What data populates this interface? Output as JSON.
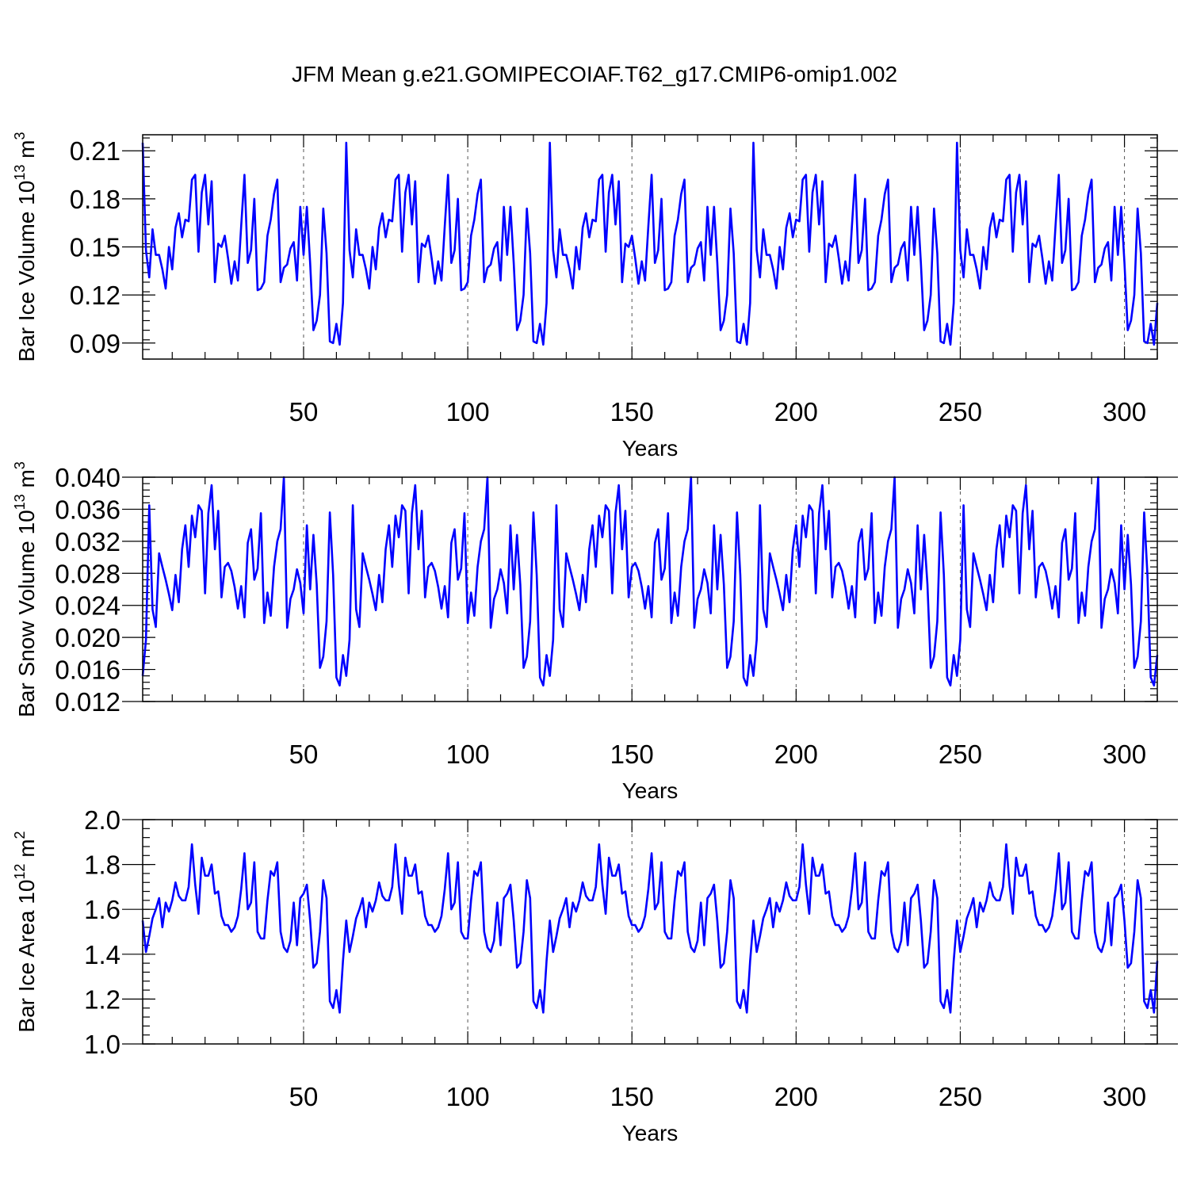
{
  "title": "JFM Mean g.e21.GOMIPECOIAF.T62_g17.CMIP6-omip1.002",
  "chart_data": [
    {
      "type": "line",
      "ylabel": "Bar Ice Volume 10",
      "ylabel_sup": "13",
      "ylabel_unit": " m",
      "ylabel_unit_sup": "3",
      "xlabel": "Years",
      "xlim": [
        1,
        310
      ],
      "ylim": [
        0.08,
        0.22
      ],
      "yticks": [
        "0.09",
        "0.12",
        "0.15",
        "0.18",
        "0.21"
      ],
      "ytick_values": [
        0.09,
        0.12,
        0.15,
        0.18,
        0.21
      ],
      "xticks": [
        "50",
        "100",
        "150",
        "200",
        "250",
        "300"
      ],
      "xtick_values": [
        50,
        100,
        150,
        200,
        250,
        300
      ],
      "color": "#0000ff",
      "cycle_start": 1,
      "cycle_length": 62,
      "values": [
        0.215,
        0.148,
        0.131,
        0.161,
        0.145,
        0.145,
        0.136,
        0.124,
        0.15,
        0.136,
        0.162,
        0.171,
        0.156,
        0.167,
        0.166,
        0.192,
        0.195,
        0.147,
        0.184,
        0.195,
        0.164,
        0.191,
        0.128,
        0.152,
        0.15,
        0.157,
        0.143,
        0.127,
        0.141,
        0.129,
        0.163,
        0.195,
        0.14,
        0.148,
        0.18,
        0.123,
        0.124,
        0.128,
        0.157,
        0.167,
        0.183,
        0.192,
        0.128,
        0.137,
        0.139,
        0.149,
        0.153,
        0.129,
        0.175,
        0.145,
        0.175,
        0.14,
        0.098,
        0.104,
        0.12,
        0.174,
        0.146,
        0.091,
        0.09,
        0.102,
        0.089,
        0.115
      ]
    },
    {
      "type": "line",
      "ylabel": "Bar Snow Volume 10",
      "ylabel_sup": "13",
      "ylabel_unit": " m",
      "ylabel_unit_sup": "3",
      "xlabel": "Years",
      "xlim": [
        1,
        310
      ],
      "ylim": [
        0.012,
        0.04
      ],
      "yticks": [
        "0.012",
        "0.016",
        "0.020",
        "0.024",
        "0.028",
        "0.032",
        "0.036",
        "0.040"
      ],
      "ytick_values": [
        0.012,
        0.016,
        0.02,
        0.024,
        0.028,
        0.032,
        0.036,
        0.04
      ],
      "xticks": [
        "50",
        "100",
        "150",
        "200",
        "250",
        "300"
      ],
      "xtick_values": [
        50,
        100,
        150,
        200,
        250,
        300
      ],
      "color": "#0000ff",
      "cycle_start": 3,
      "cycle_length": 62,
      "values": [
        0.0365,
        0.0235,
        0.0213,
        0.0305,
        0.0288,
        0.0272,
        0.0254,
        0.0234,
        0.0278,
        0.0244,
        0.031,
        0.034,
        0.0288,
        0.0352,
        0.0325,
        0.0365,
        0.0358,
        0.0255,
        0.0355,
        0.039,
        0.031,
        0.0358,
        0.025,
        0.0288,
        0.0293,
        0.0283,
        0.0263,
        0.0236,
        0.0264,
        0.0225,
        0.0318,
        0.0335,
        0.0272,
        0.0286,
        0.0355,
        0.0218,
        0.0256,
        0.0227,
        0.0288,
        0.032,
        0.0335,
        0.04,
        0.0212,
        0.0248,
        0.026,
        0.0285,
        0.0268,
        0.023,
        0.034,
        0.026,
        0.0328,
        0.0266,
        0.0162,
        0.0176,
        0.022,
        0.0356,
        0.0278,
        0.015,
        0.014,
        0.0178,
        0.0152,
        0.0197
      ]
    },
    {
      "type": "line",
      "ylabel": "Bar Ice Area 10",
      "ylabel_sup": "12",
      "ylabel_unit": " m",
      "ylabel_unit_sup": "2",
      "xlabel": "Years",
      "xlim": [
        1,
        310
      ],
      "ylim": [
        1.0,
        2.0
      ],
      "yticks": [
        "1.0",
        "1.2",
        "1.4",
        "1.6",
        "1.8",
        "2.0"
      ],
      "ytick_values": [
        1.0,
        1.2,
        1.4,
        1.6,
        1.8,
        2.0
      ],
      "xticks": [
        "50",
        "100",
        "150",
        "200",
        "250",
        "300"
      ],
      "xtick_values": [
        50,
        100,
        150,
        200,
        250,
        300
      ],
      "color": "#0000ff",
      "cycle_start": 1,
      "cycle_length": 62,
      "values": [
        1.55,
        1.41,
        1.48,
        1.56,
        1.6,
        1.65,
        1.52,
        1.63,
        1.59,
        1.64,
        1.72,
        1.66,
        1.64,
        1.64,
        1.7,
        1.89,
        1.71,
        1.58,
        1.83,
        1.75,
        1.75,
        1.8,
        1.67,
        1.68,
        1.57,
        1.53,
        1.53,
        1.5,
        1.52,
        1.57,
        1.69,
        1.85,
        1.6,
        1.63,
        1.81,
        1.5,
        1.47,
        1.47,
        1.64,
        1.77,
        1.75,
        1.81,
        1.5,
        1.43,
        1.41,
        1.46,
        1.63,
        1.44,
        1.65,
        1.67,
        1.71,
        1.55,
        1.34,
        1.36,
        1.5,
        1.73,
        1.65,
        1.19,
        1.16,
        1.24,
        1.14,
        1.37
      ]
    }
  ]
}
